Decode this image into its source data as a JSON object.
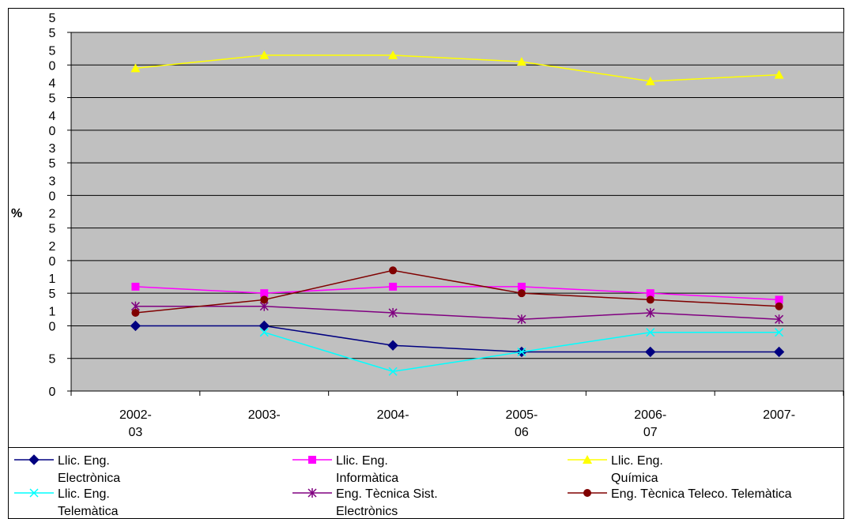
{
  "chart_data": {
    "type": "line",
    "title": "",
    "xlabel": "",
    "ylabel": "%",
    "ylim": [
      0,
      55
    ],
    "y_tick_labels": [
      {
        "value": 0,
        "label": "0"
      },
      {
        "value": 5,
        "label": "5"
      },
      {
        "value": 10,
        "label": "1\n0"
      },
      {
        "value": 15,
        "label": "1\n5"
      },
      {
        "value": 20,
        "label": "2\n0"
      },
      {
        "value": 25,
        "label": "2\n5"
      },
      {
        "value": 30,
        "label": "3\n0"
      },
      {
        "value": 35,
        "label": "3\n5"
      },
      {
        "value": 40,
        "label": "4\n0"
      },
      {
        "value": 45,
        "label": "4\n5"
      },
      {
        "value": 50,
        "label": "5\n0"
      },
      {
        "value": 55,
        "label": "5\n5"
      }
    ],
    "categories": [
      "2002-03",
      "2003-",
      "2004-",
      "2005-06",
      "2006-07",
      "2007-"
    ],
    "grid": true,
    "legend_position": "bottom",
    "plot_background": "#c0c0c0",
    "series": [
      {
        "name": "Llic. Eng. Electrònica",
        "color": "#000080",
        "marker": "diamond",
        "values": [
          10,
          10,
          7,
          6,
          6,
          6
        ]
      },
      {
        "name": "Llic. Eng. Informàtica",
        "color": "#ff00ff",
        "marker": "square",
        "values": [
          16,
          15,
          16,
          16,
          15,
          14
        ]
      },
      {
        "name": "Llic. Eng. Química",
        "color": "#ffff00",
        "marker": "triangle",
        "values": [
          49.5,
          51.5,
          51.5,
          50.5,
          47.5,
          48.5
        ]
      },
      {
        "name": "Llic. Eng. Telemàtica",
        "color": "#00ffff",
        "marker": "x",
        "values": [
          null,
          9,
          3,
          6,
          9,
          9
        ]
      },
      {
        "name": "Eng. Tècnica Sist. Electrònics",
        "color": "#800080",
        "marker": "asterisk",
        "values": [
          13,
          13,
          12,
          11,
          12,
          11
        ]
      },
      {
        "name": "Eng. Tècnica Teleco. Telemàtica",
        "color": "#800000",
        "marker": "circle",
        "values": [
          12,
          14,
          18.5,
          15,
          14,
          13
        ]
      }
    ]
  }
}
